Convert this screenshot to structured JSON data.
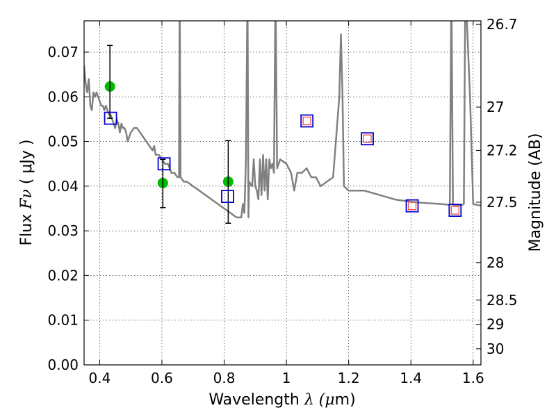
{
  "chart_data": {
    "type": "scatter",
    "xlabel": "Wavelength",
    "xlabel_symbol": "λ (",
    "xlabel_unit_mu": "μ",
    "xlabel_unit_rest": "m)",
    "ylabel": "Flux",
    "ylabel_symbol": "Fν",
    "ylabel_unit": "( μJy )",
    "ylabel_right": "Magnitude (AB)",
    "xlim": [
      0.35,
      1.625
    ],
    "ylim": [
      0.0,
      0.077
    ],
    "grid": true,
    "x_ticks": [
      0.4,
      0.6,
      0.8,
      1.0,
      1.2,
      1.4,
      1.6
    ],
    "x_tick_labels": [
      "0.4",
      "0.6",
      "0.8",
      "1",
      "1.2",
      "1.4",
      "1.6"
    ],
    "y_ticks": [
      0.0,
      0.01,
      0.02,
      0.03,
      0.04,
      0.05,
      0.06,
      0.07
    ],
    "y_tick_labels": [
      "0.00",
      "0.01",
      "0.02",
      "0.03",
      "0.04",
      "0.05",
      "0.06",
      "0.07"
    ],
    "right_ticks": [
      {
        "label": "26.7",
        "flux": 0.0762
      },
      {
        "label": "27",
        "flux": 0.0577
      },
      {
        "label": "27.2",
        "flux": 0.048
      },
      {
        "label": "27.5",
        "flux": 0.0364
      },
      {
        "label": "28",
        "flux": 0.0229
      },
      {
        "label": "28.5",
        "flux": 0.0145
      },
      {
        "label": "29",
        "flux": 0.0091
      },
      {
        "label": "30",
        "flux": 0.0036
      }
    ],
    "series": [
      {
        "kind": "line",
        "color": "#808080",
        "points": [
          [
            0.35,
            0.067
          ],
          [
            0.355,
            0.063
          ],
          [
            0.36,
            0.061
          ],
          [
            0.365,
            0.064
          ],
          [
            0.37,
            0.058
          ],
          [
            0.375,
            0.057
          ],
          [
            0.38,
            0.061
          ],
          [
            0.385,
            0.06
          ],
          [
            0.39,
            0.061
          ],
          [
            0.395,
            0.06
          ],
          [
            0.4,
            0.059
          ],
          [
            0.405,
            0.058
          ],
          [
            0.41,
            0.058
          ],
          [
            0.415,
            0.057
          ],
          [
            0.42,
            0.058
          ],
          [
            0.425,
            0.057
          ],
          [
            0.43,
            0.056
          ],
          [
            0.435,
            0.056
          ],
          [
            0.44,
            0.055
          ],
          [
            0.445,
            0.054
          ],
          [
            0.45,
            0.053
          ],
          [
            0.455,
            0.055
          ],
          [
            0.46,
            0.054
          ],
          [
            0.465,
            0.052
          ],
          [
            0.47,
            0.054
          ],
          [
            0.475,
            0.053
          ],
          [
            0.48,
            0.053
          ],
          [
            0.485,
            0.052
          ],
          [
            0.49,
            0.05
          ],
          [
            0.495,
            0.051
          ],
          [
            0.5,
            0.052
          ],
          [
            0.51,
            0.053
          ],
          [
            0.52,
            0.053
          ],
          [
            0.53,
            0.052
          ],
          [
            0.54,
            0.051
          ],
          [
            0.55,
            0.05
          ],
          [
            0.56,
            0.049
          ],
          [
            0.57,
            0.048
          ],
          [
            0.575,
            0.049
          ],
          [
            0.58,
            0.047
          ],
          [
            0.59,
            0.047
          ],
          [
            0.6,
            0.046
          ],
          [
            0.61,
            0.045
          ],
          [
            0.62,
            0.045
          ],
          [
            0.63,
            0.043
          ],
          [
            0.64,
            0.043
          ],
          [
            0.65,
            0.042
          ],
          [
            0.655,
            0.042
          ],
          [
            0.657,
            0.085
          ],
          [
            0.66,
            0.042
          ],
          [
            0.67,
            0.041
          ],
          [
            0.68,
            0.041
          ],
          [
            0.7,
            0.04
          ],
          [
            0.72,
            0.039
          ],
          [
            0.74,
            0.038
          ],
          [
            0.76,
            0.037
          ],
          [
            0.78,
            0.036
          ],
          [
            0.8,
            0.035
          ],
          [
            0.82,
            0.034
          ],
          [
            0.84,
            0.033
          ],
          [
            0.855,
            0.033
          ],
          [
            0.86,
            0.036
          ],
          [
            0.865,
            0.034
          ],
          [
            0.87,
            0.046
          ],
          [
            0.875,
            0.085
          ],
          [
            0.878,
            0.033
          ],
          [
            0.88,
            0.041
          ],
          [
            0.89,
            0.04
          ],
          [
            0.895,
            0.046
          ],
          [
            0.9,
            0.04
          ],
          [
            0.905,
            0.039
          ],
          [
            0.91,
            0.037
          ],
          [
            0.915,
            0.046
          ],
          [
            0.92,
            0.038
          ],
          [
            0.925,
            0.047
          ],
          [
            0.93,
            0.039
          ],
          [
            0.935,
            0.046
          ],
          [
            0.94,
            0.037
          ],
          [
            0.945,
            0.046
          ],
          [
            0.95,
            0.044
          ],
          [
            0.955,
            0.045
          ],
          [
            0.96,
            0.043
          ],
          [
            0.965,
            0.085
          ],
          [
            0.97,
            0.044
          ],
          [
            0.975,
            0.045
          ],
          [
            0.98,
            0.046
          ],
          [
            1.0,
            0.045
          ],
          [
            1.015,
            0.043
          ],
          [
            1.025,
            0.039
          ],
          [
            1.035,
            0.043
          ],
          [
            1.05,
            0.043
          ],
          [
            1.065,
            0.044
          ],
          [
            1.08,
            0.042
          ],
          [
            1.095,
            0.042
          ],
          [
            1.11,
            0.04
          ],
          [
            1.13,
            0.041
          ],
          [
            1.15,
            0.042
          ],
          [
            1.17,
            0.06
          ],
          [
            1.175,
            0.074
          ],
          [
            1.18,
            0.061
          ],
          [
            1.185,
            0.04
          ],
          [
            1.2,
            0.039
          ],
          [
            1.25,
            0.039
          ],
          [
            1.3,
            0.038
          ],
          [
            1.35,
            0.037
          ],
          [
            1.4,
            0.0365
          ],
          [
            1.45,
            0.0362
          ],
          [
            1.5,
            0.036
          ],
          [
            1.525,
            0.0358
          ],
          [
            1.53,
            0.085
          ],
          [
            1.535,
            0.0358
          ],
          [
            1.56,
            0.0357
          ],
          [
            1.57,
            0.036
          ],
          [
            1.575,
            0.085
          ],
          [
            1.59,
            0.06
          ],
          [
            1.6,
            0.036
          ],
          [
            1.62,
            0.0357
          ],
          [
            1.625,
            0.0357
          ]
        ]
      },
      {
        "kind": "points",
        "marker": "circle",
        "color": "#00bb00",
        "points": [
          [
            0.433,
            0.0623
          ],
          [
            0.603,
            0.0407
          ],
          [
            0.813,
            0.041
          ]
        ]
      },
      {
        "kind": "errorbars",
        "color": "#000000",
        "points": [
          {
            "x": 0.433,
            "y": 0.0552,
            "low": 0.0552,
            "high": 0.0715
          },
          {
            "x": 0.603,
            "y": 0.044,
            "low": 0.0352,
            "high": 0.046
          },
          {
            "x": 0.813,
            "y": 0.041,
            "low": 0.0317,
            "high": 0.0502
          }
        ]
      },
      {
        "kind": "points",
        "marker": "square",
        "color": "#0000cc",
        "points": [
          [
            0.435,
            0.0552
          ],
          [
            0.607,
            0.045
          ],
          [
            0.811,
            0.0377
          ],
          [
            1.066,
            0.0546
          ],
          [
            1.26,
            0.0506
          ],
          [
            1.404,
            0.0356
          ],
          [
            1.542,
            0.0346
          ]
        ]
      },
      {
        "kind": "points",
        "marker": "square-small",
        "color": "#ff4444",
        "points": [
          [
            1.066,
            0.0546
          ],
          [
            1.26,
            0.0506
          ],
          [
            1.404,
            0.0356
          ],
          [
            1.542,
            0.0346
          ]
        ]
      }
    ]
  }
}
